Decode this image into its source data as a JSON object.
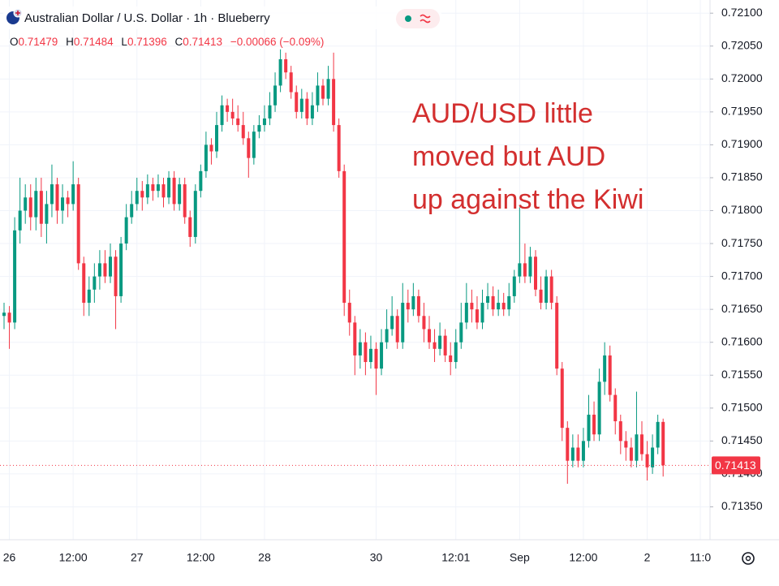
{
  "header": {
    "title": "Australian Dollar / U.S. Dollar · 1h · Blueberry",
    "o_label": "O",
    "o": "0.71479",
    "h_label": "H",
    "h": "0.71484",
    "l_label": "L",
    "l": "0.71396",
    "c_label": "C",
    "c": "0.71413",
    "change": "−0.00066 (−0.09%)"
  },
  "chart_data": {
    "type": "candlestick",
    "annotation": [
      "AUD/USD little",
      "moved but AUD",
      "up against the Kiwi"
    ],
    "up_color": "#089981",
    "down_color": "#f23645",
    "grid": true,
    "categories": [
      null,
      "26",
      null,
      null,
      null,
      null,
      null,
      null,
      null,
      null,
      null,
      null,
      null,
      "12:00",
      null,
      null,
      null,
      null,
      null,
      null,
      null,
      null,
      null,
      null,
      null,
      "27",
      null,
      null,
      null,
      null,
      null,
      null,
      null,
      null,
      null,
      null,
      null,
      "12:00",
      null,
      null,
      null,
      null,
      null,
      null,
      null,
      null,
      null,
      null,
      null,
      "28",
      null,
      null,
      null,
      null,
      null,
      null,
      null,
      null,
      null,
      null,
      null,
      null,
      null,
      null,
      null,
      null,
      null,
      null,
      null,
      null,
      "30",
      null,
      null,
      null,
      null,
      null,
      null,
      null,
      null,
      null,
      null,
      null,
      null,
      null,
      null,
      "12:01",
      null,
      null,
      null,
      null,
      null,
      null,
      null,
      null,
      null,
      null,
      null,
      "Sep",
      null,
      null,
      null,
      null,
      null,
      null,
      null,
      null,
      null,
      null,
      null,
      "12:00",
      null,
      null,
      null,
      null,
      null,
      null,
      null,
      null,
      null,
      null,
      null,
      "2",
      null,
      null,
      null,
      null,
      null,
      null,
      null,
      null,
      null,
      "11:0"
    ],
    "open": [
      0.7164,
      0.71645,
      0.7163,
      0.7177,
      0.718,
      0.7182,
      0.7179,
      0.7183,
      0.7178,
      0.7181,
      0.7184,
      0.718,
      0.7182,
      0.7181,
      0.7184,
      0.7172,
      0.7166,
      0.7168,
      0.717,
      0.7172,
      0.717,
      0.7173,
      0.7167,
      0.7175,
      0.7179,
      0.7181,
      0.7183,
      0.7182,
      0.7184,
      0.7183,
      0.7184,
      0.7182,
      0.7185,
      0.7181,
      0.7184,
      0.7179,
      0.7176,
      0.7183,
      0.7186,
      0.719,
      0.7189,
      0.7193,
      0.7196,
      0.7195,
      0.7194,
      0.7193,
      0.7191,
      0.7188,
      0.7192,
      0.7193,
      0.7194,
      0.7196,
      0.7199,
      0.7203,
      0.7201,
      0.7198,
      0.7195,
      0.7197,
      0.7194,
      0.7196,
      0.7199,
      0.7197,
      0.72,
      0.7193,
      0.7186,
      0.7166,
      0.7163,
      0.7158,
      0.716,
      0.7157,
      0.7159,
      0.7156,
      0.716,
      0.7162,
      0.7164,
      0.716,
      0.7166,
      0.7165,
      0.7167,
      0.7164,
      0.7162,
      0.716,
      0.7159,
      0.7161,
      0.7158,
      0.7157,
      0.716,
      0.7163,
      0.7166,
      0.7165,
      0.7163,
      0.7166,
      0.7167,
      0.7165,
      0.7166,
      0.7165,
      0.7167,
      0.717,
      0.7172,
      0.717,
      0.7173,
      0.7168,
      0.7166,
      0.717,
      0.7166,
      0.7156,
      0.7147,
      0.7142,
      0.7144,
      0.7142,
      0.7145,
      0.7149,
      0.7146,
      0.7154,
      0.7158,
      0.7152,
      0.7148,
      0.7145,
      0.7144,
      0.7142,
      0.7146,
      0.7143,
      0.7141,
      0.7144,
      0.71479,
      null,
      null,
      null,
      null,
      null,
      null,
      null
    ],
    "high": [
      0.7166,
      0.71655,
      0.7179,
      0.7185,
      0.7184,
      0.7184,
      0.7185,
      0.7185,
      0.7183,
      0.7187,
      0.7185,
      0.7184,
      0.7183,
      0.71875,
      0.7185,
      0.7173,
      0.717,
      0.7172,
      0.7174,
      0.7174,
      0.7175,
      0.7174,
      0.7176,
      0.7181,
      0.7183,
      0.7185,
      0.71845,
      0.71855,
      0.7185,
      0.71855,
      0.7185,
      0.7186,
      0.7186,
      0.7185,
      0.7185,
      0.718,
      0.7184,
      0.7187,
      0.7192,
      0.7191,
      0.7195,
      0.71975,
      0.7197,
      0.7197,
      0.7196,
      0.7195,
      0.7192,
      0.7193,
      0.71945,
      0.7196,
      0.7198,
      0.7201,
      0.72045,
      0.7204,
      0.7202,
      0.7199,
      0.71985,
      0.7198,
      0.7198,
      0.7201,
      0.72,
      0.7202,
      0.7204,
      0.7194,
      0.7187,
      0.7168,
      0.7164,
      0.7162,
      0.71615,
      0.7161,
      0.716,
      0.7162,
      0.7165,
      0.7167,
      0.7165,
      0.7169,
      0.7168,
      0.7169,
      0.7168,
      0.7166,
      0.7164,
      0.7162,
      0.7163,
      0.7162,
      0.716,
      0.7162,
      0.7166,
      0.7169,
      0.7168,
      0.7167,
      0.7168,
      0.7169,
      0.71685,
      0.7168,
      0.71675,
      0.7169,
      0.7171,
      0.71805,
      0.7175,
      0.71745,
      0.7174,
      0.717,
      0.7171,
      0.7171,
      0.7167,
      0.7157,
      0.7148,
      0.7146,
      0.7146,
      0.7147,
      0.7152,
      0.7151,
      0.7156,
      0.716,
      0.71595,
      0.7153,
      0.7149,
      0.71465,
      0.71455,
      0.71525,
      0.7148,
      0.7145,
      0.7146,
      0.7149,
      0.71484,
      null,
      null,
      null,
      null,
      null,
      null,
      null
    ],
    "low": [
      0.7162,
      0.7159,
      0.7162,
      0.7175,
      0.7178,
      0.7177,
      0.7177,
      0.7176,
      0.7175,
      0.7179,
      0.7178,
      0.7178,
      0.7179,
      0.718,
      0.7171,
      0.7164,
      0.7164,
      0.7166,
      0.7168,
      0.7169,
      0.7169,
      0.7162,
      0.7166,
      0.7174,
      0.7178,
      0.718,
      0.718,
      0.7181,
      0.71815,
      0.7182,
      0.71805,
      0.7181,
      0.718,
      0.718,
      0.7178,
      0.71745,
      0.7175,
      0.7182,
      0.7185,
      0.7187,
      0.7188,
      0.7192,
      0.71935,
      0.7193,
      0.7192,
      0.719,
      0.7185,
      0.7187,
      0.7191,
      0.7192,
      0.7193,
      0.7195,
      0.7198,
      0.72,
      0.7197,
      0.7194,
      0.7194,
      0.7193,
      0.7193,
      0.7195,
      0.7196,
      0.7196,
      0.7192,
      0.7185,
      0.7164,
      0.7161,
      0.7155,
      0.7156,
      0.7155,
      0.7156,
      0.7152,
      0.7155,
      0.7159,
      0.7161,
      0.7159,
      0.7159,
      0.7163,
      0.7164,
      0.7163,
      0.716,
      0.7159,
      0.7157,
      0.7158,
      0.7157,
      0.7155,
      0.7156,
      0.7159,
      0.7162,
      0.7163,
      0.7162,
      0.7162,
      0.7165,
      0.7164,
      0.7164,
      0.7164,
      0.7164,
      0.7166,
      0.7169,
      0.7169,
      0.7169,
      0.7167,
      0.7165,
      0.7165,
      0.7165,
      0.7155,
      0.7145,
      0.71385,
      0.7141,
      0.7141,
      0.7141,
      0.7144,
      0.7145,
      0.7145,
      0.7152,
      0.7151,
      0.7146,
      0.7143,
      0.7142,
      0.7141,
      0.7141,
      0.7142,
      0.7139,
      0.714,
      0.7143,
      0.71396,
      null,
      null,
      null,
      null,
      null,
      null,
      null
    ],
    "close": [
      0.71645,
      0.7163,
      0.7177,
      0.718,
      0.7182,
      0.7179,
      0.7183,
      0.7178,
      0.7181,
      0.7184,
      0.718,
      0.7182,
      0.7181,
      0.7184,
      0.7172,
      0.7166,
      0.7168,
      0.717,
      0.7172,
      0.717,
      0.7173,
      0.7167,
      0.7175,
      0.7179,
      0.7181,
      0.7183,
      0.7182,
      0.7184,
      0.7183,
      0.7184,
      0.7182,
      0.7185,
      0.7181,
      0.7184,
      0.7179,
      0.7176,
      0.7183,
      0.7186,
      0.719,
      0.7189,
      0.7193,
      0.7196,
      0.7195,
      0.7194,
      0.7193,
      0.7191,
      0.7188,
      0.7192,
      0.7193,
      0.7194,
      0.7196,
      0.7199,
      0.7203,
      0.7201,
      0.7198,
      0.7195,
      0.7197,
      0.7194,
      0.7196,
      0.7199,
      0.7197,
      0.72,
      0.7193,
      0.7186,
      0.7166,
      0.7163,
      0.7158,
      0.716,
      0.7157,
      0.7159,
      0.7156,
      0.716,
      0.7162,
      0.7164,
      0.716,
      0.7166,
      0.7165,
      0.7167,
      0.7164,
      0.7162,
      0.716,
      0.7159,
      0.7161,
      0.7158,
      0.7157,
      0.716,
      0.7163,
      0.7166,
      0.7165,
      0.7163,
      0.7166,
      0.7167,
      0.7165,
      0.7166,
      0.7165,
      0.7167,
      0.717,
      0.7172,
      0.717,
      0.7173,
      0.7168,
      0.7166,
      0.717,
      0.7166,
      0.7156,
      0.7147,
      0.7142,
      0.7144,
      0.7142,
      0.7145,
      0.7149,
      0.7146,
      0.7154,
      0.7158,
      0.7152,
      0.7148,
      0.7145,
      0.7144,
      0.7142,
      0.7146,
      0.7143,
      0.7141,
      0.7144,
      0.71479,
      0.71413,
      null,
      null,
      null,
      null,
      null,
      null,
      null
    ],
    "last_price": {
      "value": 0.71413,
      "label": "0.71413"
    },
    "ylim": [
      0.713,
      0.7212
    ],
    "yticks": [
      {
        "value": 0.7135,
        "label": "0.71350"
      },
      {
        "value": 0.714,
        "label": "0.71400"
      },
      {
        "value": 0.7145,
        "label": "0.71450"
      },
      {
        "value": 0.715,
        "label": "0.71500"
      },
      {
        "value": 0.7155,
        "label": "0.71550"
      },
      {
        "value": 0.716,
        "label": "0.71600"
      },
      {
        "value": 0.7165,
        "label": "0.71650"
      },
      {
        "value": 0.717,
        "label": "0.71700"
      },
      {
        "value": 0.7175,
        "label": "0.71750"
      },
      {
        "value": 0.718,
        "label": "0.71800"
      },
      {
        "value": 0.7185,
        "label": "0.71850"
      },
      {
        "value": 0.719,
        "label": "0.71900"
      },
      {
        "value": 0.7195,
        "label": "0.71950"
      },
      {
        "value": 0.72,
        "label": "0.72000"
      },
      {
        "value": 0.7205,
        "label": "0.72050"
      },
      {
        "value": 0.721,
        "label": "0.72100"
      }
    ]
  }
}
